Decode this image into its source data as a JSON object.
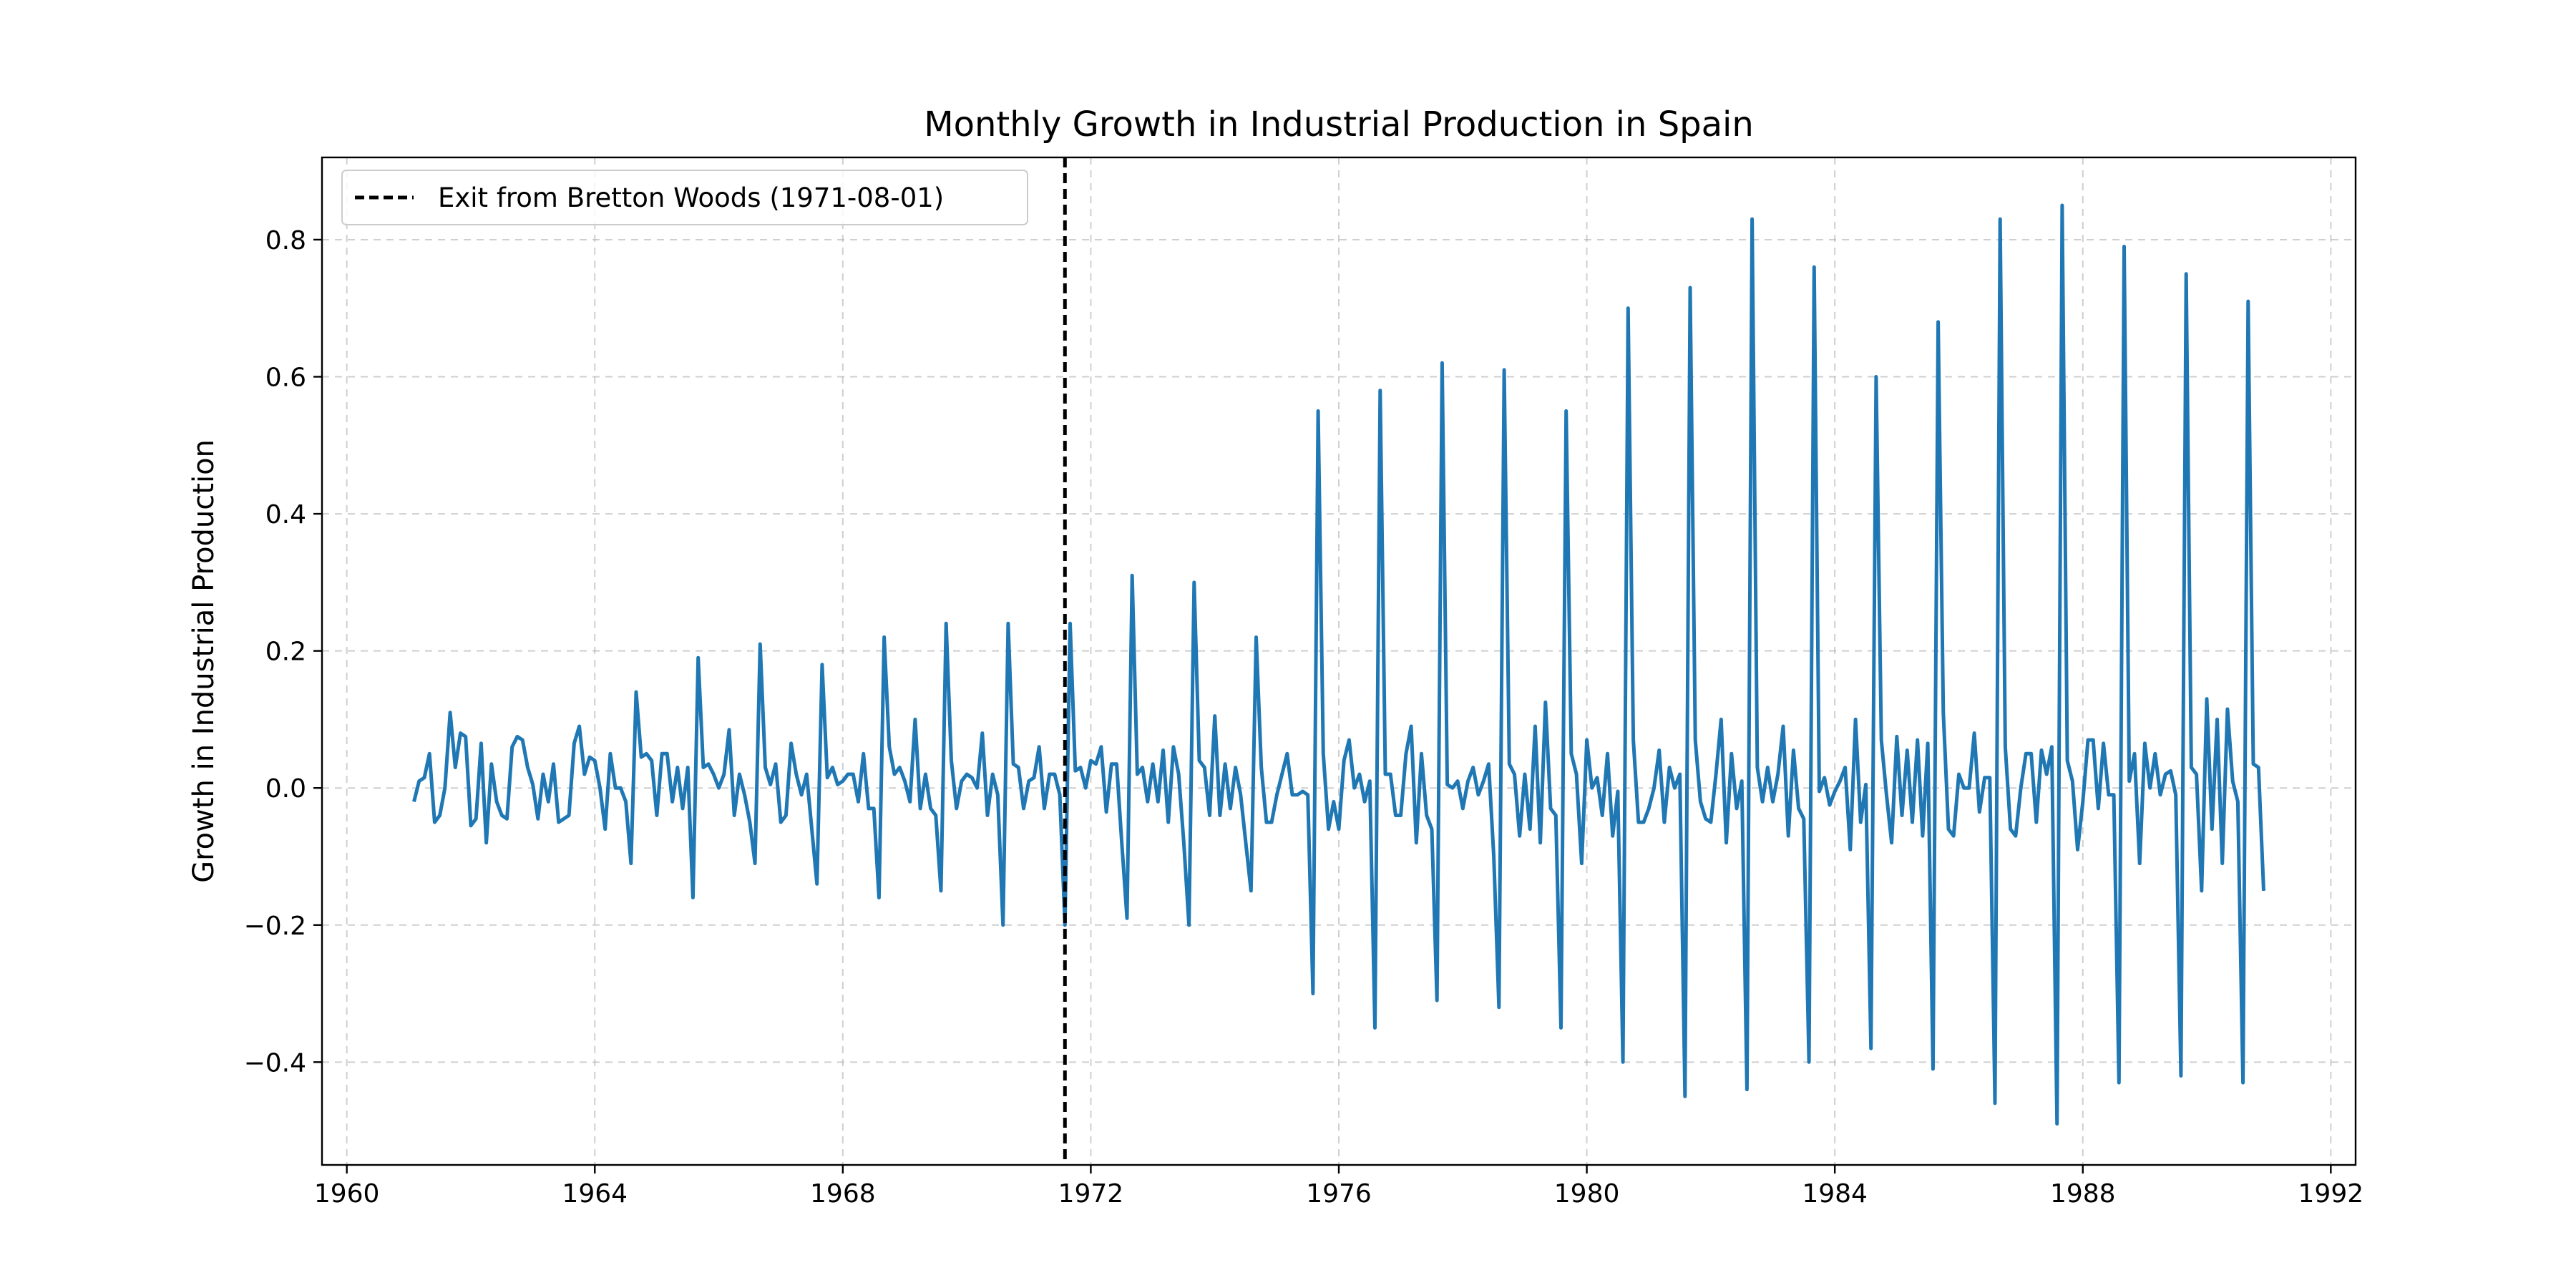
{
  "chart_data": {
    "type": "line",
    "title": "Monthly Growth in Industrial Production in Spain",
    "xlabel": "",
    "ylabel": "Growth in Industrial Production",
    "xlim": [
      1959.6,
      1992.4
    ],
    "ylim": [
      -0.55,
      0.92
    ],
    "x_ticks": [
      1960,
      1964,
      1968,
      1972,
      1976,
      1980,
      1984,
      1988,
      1992
    ],
    "x_tick_labels": [
      "1960",
      "1964",
      "1968",
      "1972",
      "1976",
      "1980",
      "1984",
      "1988",
      "1992"
    ],
    "y_ticks": [
      -0.4,
      -0.2,
      0.0,
      0.2,
      0.4,
      0.6,
      0.8
    ],
    "y_tick_labels": [
      "−0.4",
      "−0.2",
      "0.0",
      "0.2",
      "0.4",
      "0.6",
      "0.8"
    ],
    "grid": true,
    "legend": {
      "position": "upper-left",
      "entries": [
        "Exit from Bretton Woods (1971-08-01)"
      ]
    },
    "colors": {
      "series": "#1f77b4",
      "marker_line": "#000000",
      "grid": "#b0b0b0"
    },
    "series": [
      {
        "x_start": "1961-02",
        "frequency": "monthly",
        "values": [
          -0.02,
          0.01,
          0.015,
          0.05,
          -0.05,
          -0.04,
          0.0,
          0.11,
          0.03,
          0.08,
          0.075,
          -0.055,
          -0.045,
          0.065,
          -0.08,
          0.035,
          -0.02,
          -0.04,
          -0.045,
          0.06,
          0.075,
          0.07,
          0.03,
          0.005,
          -0.045,
          0.02,
          -0.02,
          0.035,
          -0.05,
          -0.045,
          -0.04,
          0.065,
          0.09,
          0.02,
          0.045,
          0.04,
          0.0,
          -0.06,
          0.05,
          0.0,
          0.0,
          -0.02,
          -0.11,
          0.14,
          0.045,
          0.05,
          0.04,
          -0.04,
          0.05,
          0.05,
          -0.02,
          0.03,
          -0.03,
          0.03,
          -0.16,
          0.19,
          0.03,
          0.035,
          0.02,
          0.0,
          0.02,
          0.085,
          -0.04,
          0.02,
          -0.01,
          -0.05,
          -0.11,
          0.21,
          0.03,
          0.005,
          0.035,
          -0.05,
          -0.04,
          0.065,
          0.02,
          -0.01,
          0.02,
          -0.06,
          -0.14,
          0.18,
          0.015,
          0.03,
          0.005,
          0.01,
          0.02,
          0.02,
          -0.02,
          0.05,
          -0.03,
          -0.03,
          -0.16,
          0.22,
          0.06,
          0.02,
          0.03,
          0.01,
          -0.02,
          0.1,
          -0.03,
          0.02,
          -0.03,
          -0.04,
          -0.15,
          0.24,
          0.04,
          -0.03,
          0.01,
          0.02,
          0.015,
          0.0,
          0.08,
          -0.04,
          0.02,
          -0.01,
          -0.2,
          0.24,
          0.035,
          0.03,
          -0.03,
          0.01,
          0.015,
          0.06,
          -0.03,
          0.02,
          0.02,
          -0.01,
          -0.2,
          0.24,
          0.025,
          0.03,
          0.0,
          0.04,
          0.035,
          0.06,
          -0.035,
          0.035,
          0.035,
          -0.08,
          -0.19,
          0.31,
          0.02,
          0.03,
          -0.02,
          0.035,
          -0.02,
          0.055,
          -0.05,
          0.06,
          0.02,
          -0.08,
          -0.2,
          0.3,
          0.04,
          0.03,
          -0.04,
          0.105,
          -0.04,
          0.035,
          -0.03,
          0.03,
          -0.01,
          -0.08,
          -0.15,
          0.22,
          0.03,
          -0.05,
          -0.05,
          -0.01,
          0.02,
          0.05,
          -0.01,
          -0.01,
          -0.005,
          -0.01,
          -0.3,
          0.55,
          0.05,
          -0.06,
          -0.02,
          -0.06,
          0.04,
          0.07,
          0.0,
          0.02,
          -0.02,
          0.01,
          -0.35,
          0.58,
          0.02,
          0.02,
          -0.04,
          -0.04,
          0.05,
          0.09,
          -0.08,
          0.05,
          -0.04,
          -0.06,
          -0.31,
          0.62,
          0.005,
          0.0,
          0.01,
          -0.03,
          0.01,
          0.03,
          -0.01,
          0.01,
          0.035,
          -0.1,
          -0.32,
          0.61,
          0.035,
          0.02,
          -0.07,
          0.02,
          -0.06,
          0.09,
          -0.08,
          0.125,
          -0.03,
          -0.04,
          -0.35,
          0.55,
          0.05,
          0.02,
          -0.11,
          0.07,
          0.0,
          0.015,
          -0.04,
          0.05,
          -0.07,
          -0.005,
          -0.4,
          0.7,
          0.07,
          -0.05,
          -0.05,
          -0.03,
          0.0,
          0.055,
          -0.05,
          0.03,
          0.0,
          0.02,
          -0.45,
          0.73,
          0.07,
          -0.02,
          -0.045,
          -0.05,
          0.02,
          0.1,
          -0.08,
          0.05,
          -0.03,
          0.01,
          -0.44,
          0.83,
          0.03,
          -0.02,
          0.03,
          -0.02,
          0.02,
          0.09,
          -0.07,
          0.055,
          -0.03,
          -0.045,
          -0.4,
          0.76,
          -0.005,
          0.015,
          -0.025,
          -0.005,
          0.01,
          0.03,
          -0.09,
          0.1,
          -0.05,
          0.005,
          -0.38,
          0.6,
          0.07,
          -0.01,
          -0.08,
          0.075,
          -0.04,
          0.055,
          -0.05,
          0.07,
          -0.07,
          0.065,
          -0.41,
          0.68,
          0.11,
          -0.06,
          -0.07,
          0.02,
          0.0,
          0.0,
          0.08,
          -0.035,
          0.015,
          0.015,
          -0.46,
          0.83,
          0.06,
          -0.06,
          -0.07,
          0.0,
          0.05,
          0.05,
          -0.05,
          0.055,
          0.02,
          0.06,
          -0.49,
          0.85,
          0.04,
          0.01,
          -0.09,
          -0.02,
          0.07,
          0.07,
          -0.03,
          0.065,
          -0.01,
          -0.01,
          -0.43,
          0.79,
          0.01,
          0.05,
          -0.11,
          0.065,
          0.0,
          0.05,
          -0.01,
          0.02,
          0.025,
          -0.01,
          -0.42,
          0.75,
          0.03,
          0.02,
          -0.15,
          0.13,
          -0.06,
          0.1,
          -0.11,
          0.115,
          0.01,
          -0.02,
          -0.43,
          0.71,
          0.035,
          0.03,
          -0.15
        ]
      }
    ],
    "vline": {
      "date": "1971-08-01",
      "x": 1971.583,
      "style": "dashed",
      "label": "Exit from Bretton Woods (1971-08-01)"
    }
  }
}
